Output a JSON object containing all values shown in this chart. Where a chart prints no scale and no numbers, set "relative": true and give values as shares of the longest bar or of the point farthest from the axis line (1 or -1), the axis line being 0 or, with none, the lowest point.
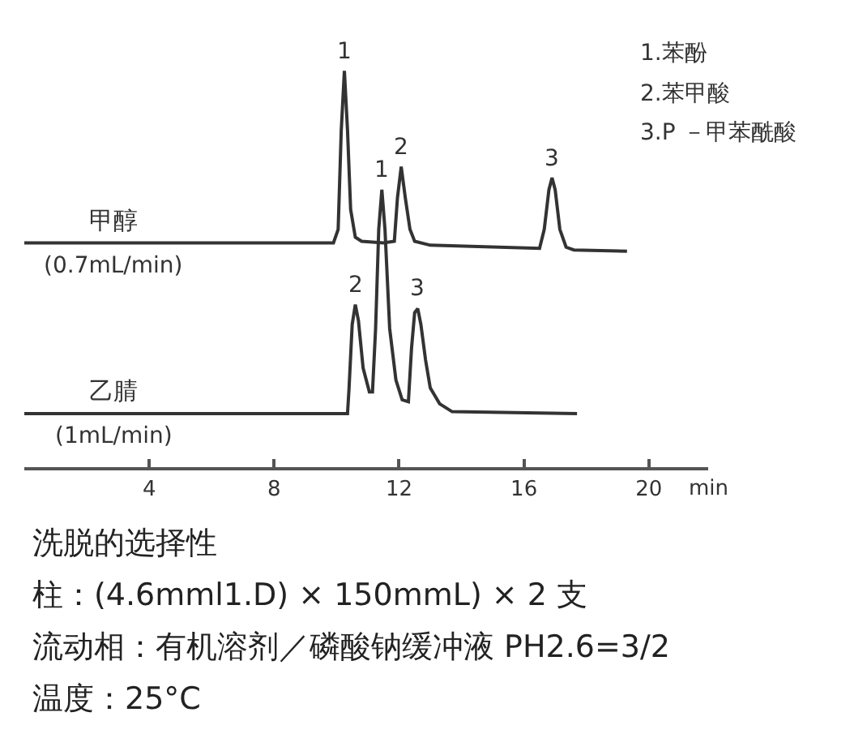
{
  "chart_data": {
    "type": "line",
    "relative": true,
    "xlabel": "min",
    "xlim": [
      0,
      21.9
    ],
    "xticks": [
      4,
      8,
      12,
      16,
      20
    ],
    "tick_labels": "x",
    "legend": false,
    "series": [
      {
        "name": "甲醇\n(0.7mL/min)",
        "color": "#333333",
        "x": [
          0,
          9.9,
          10.05,
          10.15,
          10.25,
          10.35,
          10.45,
          10.6,
          10.8,
          11.5,
          11.85,
          11.95,
          12.07,
          12.2,
          12.35,
          12.5,
          13,
          16.5,
          16.65,
          16.8,
          16.9,
          17.0,
          17.15,
          17.35,
          17.6,
          19.3
        ],
        "values": [
          0.566,
          0.566,
          0.6,
          0.85,
          1.0,
          0.85,
          0.65,
          0.58,
          0.57,
          0.566,
          0.57,
          0.68,
          0.758,
          0.68,
          0.6,
          0.57,
          0.56,
          0.552,
          0.6,
          0.7,
          0.73,
          0.7,
          0.6,
          0.555,
          0.548,
          0.545
        ]
      },
      {
        "name": "乙腈\n(1mL/min)",
        "color": "#333333",
        "x": [
          0,
          10.35,
          10.4,
          10.5,
          10.6,
          10.7,
          10.85,
          11.05,
          11.15,
          11.25,
          11.35,
          11.45,
          11.55,
          11.7,
          11.9,
          12.1,
          12.3,
          12.4,
          12.5,
          12.6,
          12.7,
          12.85,
          13.0,
          13.3,
          13.7,
          17.7
        ],
        "values": [
          0.135,
          0.135,
          0.2,
          0.36,
          0.41,
          0.37,
          0.25,
          0.19,
          0.19,
          0.35,
          0.6,
          0.7,
          0.6,
          0.35,
          0.22,
          0.17,
          0.165,
          0.3,
          0.39,
          0.4,
          0.36,
          0.27,
          0.2,
          0.16,
          0.14,
          0.135
        ]
      }
    ],
    "annotations": [
      {
        "text": "1",
        "x": 10.25,
        "y": 1.0
      },
      {
        "text": "2",
        "x": 12.07,
        "y": 0.758
      },
      {
        "text": "3",
        "x": 16.9,
        "y": 0.73
      },
      {
        "text": "2",
        "x": 10.6,
        "y": 0.41
      },
      {
        "text": "1",
        "x": 11.45,
        "y": 0.7
      },
      {
        "text": "3",
        "x": 12.6,
        "y": 0.4
      },
      "1.苯酚",
      "2.苯甲酸",
      "3.P －甲苯酰酸",
      "洗脱的选择性",
      "柱：(4.6mml1.D) × 150mmL) × 2 支",
      "流动相：有机溶剂／磷酸钠缓冲液 PH2.6=3/2",
      "温度：25°C"
    ]
  }
}
